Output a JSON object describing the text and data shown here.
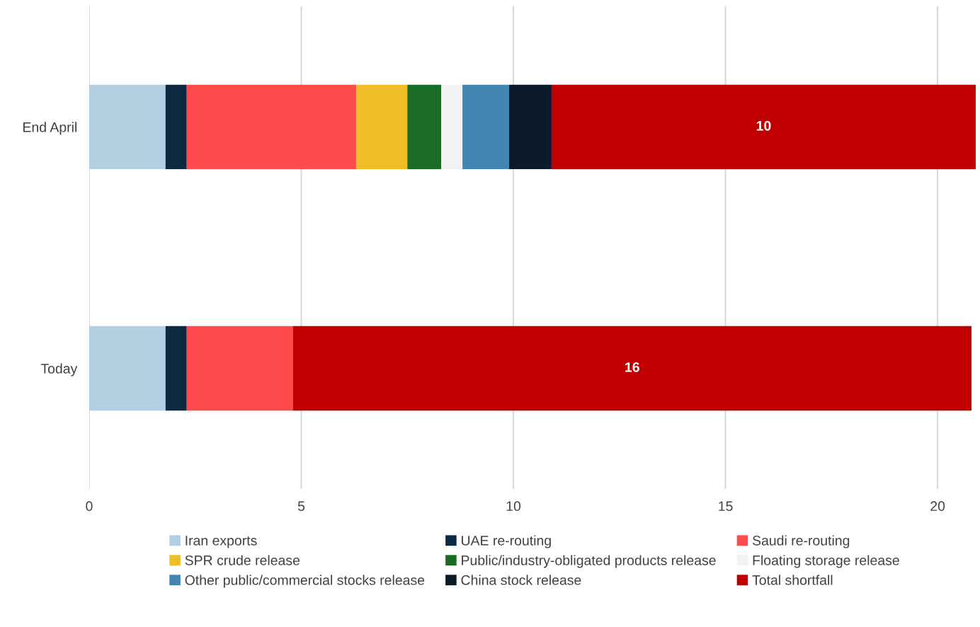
{
  "chart_data": {
    "type": "bar",
    "orientation": "horizontal",
    "stacked": true,
    "categories": [
      "End April",
      "Today"
    ],
    "series": [
      {
        "name": "Iran exports",
        "color": "#b4cfe1",
        "values": [
          1.8,
          1.8
        ]
      },
      {
        "name": "UAE re-routing",
        "color": "#0e2841",
        "values": [
          0.5,
          0.5
        ]
      },
      {
        "name": "Saudi re-routing",
        "color": "#ff4b4b",
        "values": [
          4.0,
          2.5
        ]
      },
      {
        "name": "SPR crude release",
        "color": "#eebd27",
        "values": [
          1.2,
          null
        ]
      },
      {
        "name": "Public/industry-obligated products release",
        "color": "#1a6b26",
        "values": [
          0.8,
          null
        ]
      },
      {
        "name": "Floating storage release",
        "color": "#f2f2f2",
        "values": [
          0.5,
          null
        ]
      },
      {
        "name": "Other public/commercial stocks release",
        "color": "#4484b0",
        "values": [
          1.1,
          null
        ]
      },
      {
        "name": "China stock release",
        "color": "#0b1a2b",
        "values": [
          1.0,
          null
        ]
      },
      {
        "name": "Total shortfall",
        "color": "#c00000",
        "values": [
          10.0,
          16.0
        ],
        "value_labels": [
          "10",
          "16"
        ]
      }
    ],
    "xlim": [
      0,
      21
    ],
    "xticks": [
      0,
      5,
      10,
      15,
      20
    ],
    "grid": "x",
    "legend": "bottom"
  }
}
